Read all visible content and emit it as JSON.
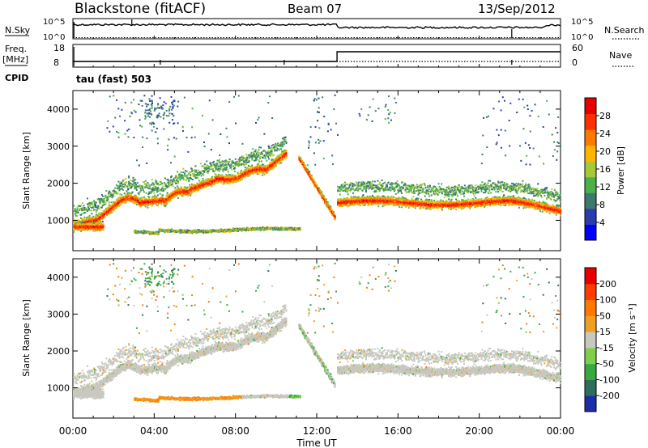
{
  "header": {
    "station": "Blackstone (fitACF)",
    "beam": "Beam 07",
    "date": "13/Sep/2012"
  },
  "labels": {
    "nsky": "N.Sky",
    "nsearch": "N.Search",
    "freq_line1": "Freq.",
    "freq_line2": "[MHz]",
    "nave": "Nave",
    "cpid": "CPID",
    "cpid_value": "tau (fast) 503",
    "x_axis": "Time UT"
  },
  "top_panels": {
    "noise": {
      "left_ticks": [
        "10^5",
        "10^0"
      ],
      "right_ticks": [
        "10^5",
        "10^0"
      ]
    },
    "freq": {
      "left_ticks": [
        "18",
        "8"
      ],
      "right_ticks": [
        "60",
        "0"
      ],
      "nave_step_time_hours": 13.0
    }
  },
  "chart_data": [
    {
      "type": "heatmap",
      "name": "power",
      "ylabel": "Slant Range [km]",
      "xlabel": "Time UT",
      "x_ticks": [
        "00:00",
        "04:00",
        "08:00",
        "12:00",
        "16:00",
        "20:00",
        "00:00"
      ],
      "xlim_hours": [
        0,
        24
      ],
      "ylim_km": [
        180,
        4500
      ],
      "y_ticks": [
        1000,
        2000,
        3000,
        4000
      ],
      "colorbar": {
        "label": "Power [dB]",
        "ticks": [
          4,
          8,
          12,
          16,
          20,
          24,
          28
        ],
        "range": [
          0,
          32
        ],
        "colors": [
          "#0000ff",
          "#2b3cb0",
          "#3d7a6e",
          "#4ab04a",
          "#a8c83a",
          "#ffb400",
          "#ff7800",
          "#ff3000",
          "#e80000"
        ]
      }
    },
    {
      "type": "heatmap",
      "name": "velocity",
      "ylabel": "Slant Range [km]",
      "xlabel": "Time UT",
      "x_ticks": [
        "00:00",
        "04:00",
        "08:00",
        "12:00",
        "16:00",
        "20:00",
        "00:00"
      ],
      "xlim_hours": [
        0,
        24
      ],
      "ylim_km": [
        180,
        4500
      ],
      "y_ticks": [
        1000,
        2000,
        3000,
        4000
      ],
      "colorbar": {
        "label": "Velocity [m s⁻¹]",
        "ticks": [
          "200",
          "100",
          "50",
          "15",
          "-15",
          "-50",
          "-100",
          "-200"
        ],
        "colors": [
          "#1a2ea8",
          "#2e6e5a",
          "#38a840",
          "#7ed04a",
          "#c8c8c0",
          "#f0a020",
          "#ff7800",
          "#ff3c00",
          "#e80000"
        ]
      }
    }
  ]
}
